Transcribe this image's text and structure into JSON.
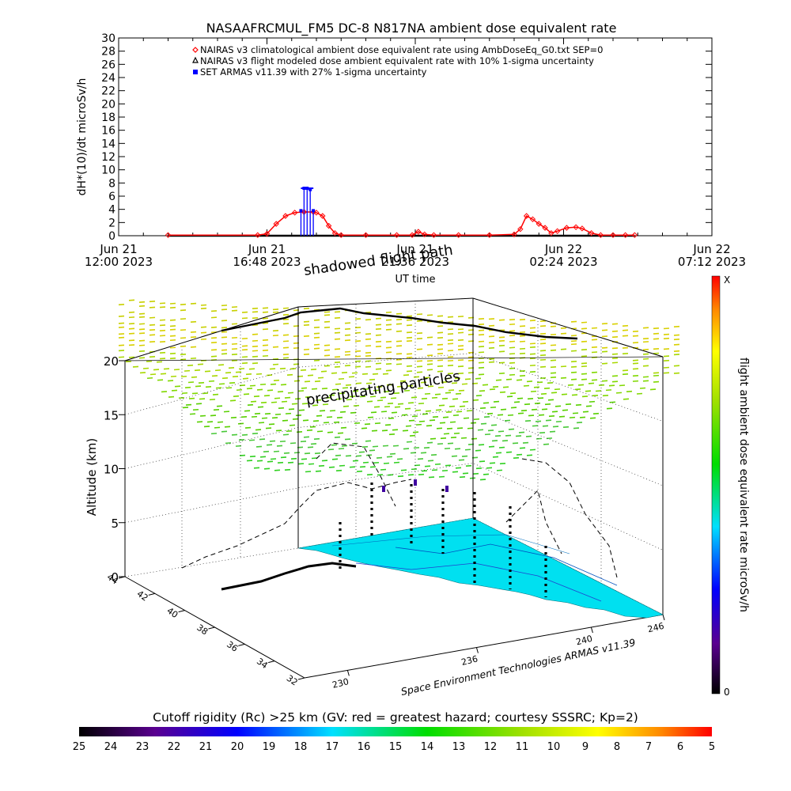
{
  "chart_data": [
    {
      "type": "line",
      "title": "NASAAFRCMUL_FM5 DC-8   N817NA ambient dose equivalent rate",
      "ylabel": "dH*(10)/dt microSv/h",
      "xlabel": "UT time",
      "ylim": [
        0,
        30
      ],
      "yticks": [
        "0",
        "2",
        "4",
        "6",
        "8",
        "10",
        "12",
        "14",
        "16",
        "18",
        "20",
        "22",
        "24",
        "26",
        "28",
        "30"
      ],
      "xtick_labels": [
        {
          "line1": "Jun 21",
          "line2": "12:00 2023"
        },
        {
          "line1": "Jun 21",
          "line2": "16:48 2023"
        },
        {
          "line1": "Jun 21",
          "line2": "21:36 2023"
        },
        {
          "line1": "Jun 22",
          "line2": "02:24 2023"
        },
        {
          "line1": "Jun 22",
          "line2": "07:12 2023"
        }
      ],
      "xlim_hours": [
        0,
        19.2
      ],
      "legend": [
        {
          "label": "NAIRAS v3 climatological ambient dose equivalent rate using AmbDoseEq_G0.txt SEP=0",
          "color": "#ff0000",
          "marker": "diamond"
        },
        {
          "label": "NAIRAS v3 flight modeled dose ambient equivalent rate with 10% 1-sigma uncertainty",
          "color": "#000000",
          "marker": "triangle"
        },
        {
          "label": "SET ARMAS v11.39 with 27% 1-sigma uncertainty",
          "color": "#0000ff",
          "marker": "square"
        }
      ],
      "series": [
        {
          "name": "NAIRAS v3 climatological ambient dose equivalent rate using AmbDoseEq_G0.txt SEP=0",
          "x": [
            1.6,
            4.5,
            4.8,
            5.1,
            5.4,
            5.7,
            6.0,
            6.3,
            6.4,
            6.6,
            6.8,
            7.0,
            7.2,
            8.0,
            9.0,
            9.5,
            9.7,
            9.9,
            10.2,
            11.0,
            12.0,
            12.8,
            13.0,
            13.2,
            13.4,
            13.6,
            13.8,
            14.0,
            14.2,
            14.5,
            14.8,
            15.0,
            15.3,
            15.6,
            16.0,
            16.4,
            16.7
          ],
          "values": [
            0.1,
            0.1,
            0.3,
            1.8,
            3.0,
            3.5,
            3.6,
            3.6,
            3.5,
            3.0,
            1.5,
            0.4,
            0.1,
            0.1,
            0.1,
            0.1,
            0.6,
            0.2,
            0.1,
            0.1,
            0.1,
            0.2,
            1.0,
            3.0,
            2.5,
            1.8,
            1.2,
            0.4,
            0.7,
            1.2,
            1.3,
            1.1,
            0.4,
            0.1,
            0.1,
            0.1,
            0.1
          ]
        },
        {
          "name": "SET ARMAS v11.39 with 27% 1-sigma uncertainty",
          "x": [
            5.9,
            6.0,
            6.1,
            6.2,
            6.3
          ],
          "values": [
            3.8,
            7.2,
            7.2,
            7.0,
            3.8
          ]
        }
      ]
    },
    {
      "type": "scatter",
      "title": "shadowed flight path",
      "annotation": "precipitating particles",
      "zlabel": "Altitude (km)",
      "zticks": [
        "0",
        "5",
        "10",
        "15",
        "20"
      ],
      "lat_ticks": [
        "44",
        "42",
        "40",
        "38",
        "36",
        "34",
        "32"
      ],
      "lon_ticks": [
        "230",
        "236",
        "240",
        "246"
      ],
      "credit": "Space Environment Technologies ARMAS v11.39",
      "colorbar": {
        "label": "flight ambient dose equivalent rate microSv/h",
        "top": "X",
        "bottom": "0"
      }
    }
  ],
  "cutoff_bar": {
    "title": "Cutoff rigidity (Rc) >25 km (GV: red = greatest hazard; courtesy SSSRC; Kp=2)",
    "ticks": [
      "25",
      "24",
      "23",
      "22",
      "21",
      "20",
      "19",
      "18",
      "17",
      "16",
      "15",
      "14",
      "13",
      "12",
      "11",
      "10",
      "9",
      "8",
      "7",
      "6",
      "5"
    ]
  },
  "colors": {
    "nairas_clim": "#ff0000",
    "nairas_flight": "#000000",
    "armas": "#0000ff",
    "surface": "#00e0f0",
    "grid": "#000000"
  }
}
